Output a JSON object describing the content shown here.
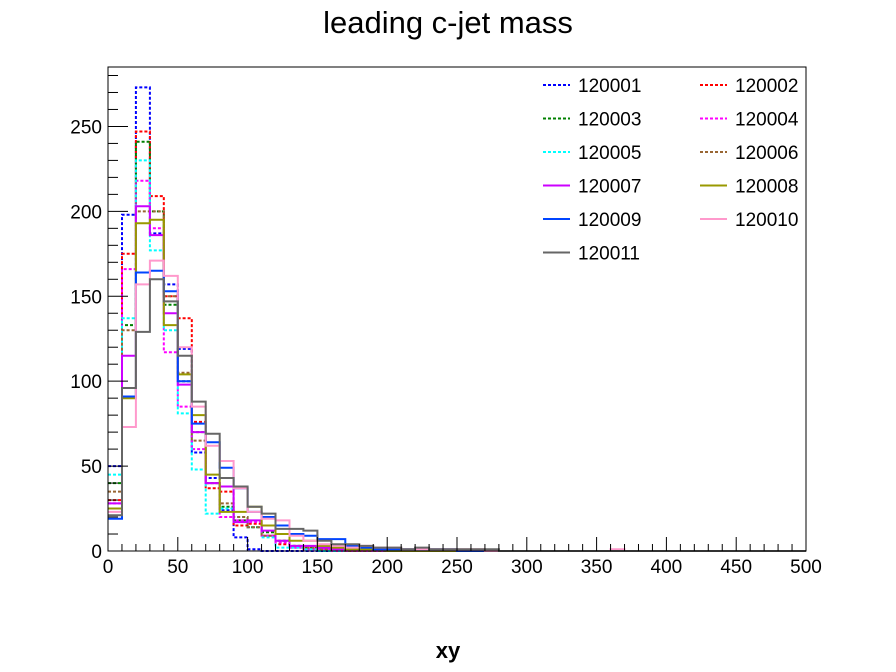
{
  "chart_data": {
    "type": "line",
    "title": "leading c-jet mass",
    "xlabel": "xy",
    "ylabel": "",
    "xlim": [
      0,
      500
    ],
    "ylim": [
      0,
      285
    ],
    "bin_width": 10,
    "x_ticks": [
      0,
      50,
      100,
      150,
      200,
      250,
      300,
      350,
      400,
      450,
      500
    ],
    "y_ticks": [
      0,
      50,
      100,
      150,
      200,
      250
    ],
    "grid": false,
    "legend_placement": "top-right",
    "series": [
      {
        "name": "120001",
        "color": "#0000ff",
        "dash": "dotted",
        "values": [
          50,
          198,
          273,
          187,
          157,
          119,
          58,
          43,
          24,
          8,
          1,
          0,
          0,
          0,
          0,
          0,
          0,
          0,
          0,
          0,
          0,
          0,
          0,
          0,
          0,
          0,
          0,
          0,
          0,
          0,
          0,
          0,
          0,
          0,
          0,
          0,
          0,
          0,
          0,
          0,
          0,
          0,
          0,
          0,
          0,
          0,
          0,
          0,
          0,
          0
        ]
      },
      {
        "name": "120002",
        "color": "#ff0000",
        "dash": "dotted",
        "values": [
          30,
          175,
          247,
          209,
          150,
          137,
          76,
          37,
          35,
          15,
          16,
          9,
          4,
          2,
          2,
          1,
          1,
          0,
          0,
          0,
          0,
          0,
          0,
          0,
          0,
          0,
          0,
          0,
          0,
          0,
          0,
          0,
          0,
          0,
          0,
          0,
          0,
          0,
          0,
          0,
          0,
          0,
          0,
          0,
          0,
          0,
          0,
          0,
          0,
          0
        ]
      },
      {
        "name": "120003",
        "color": "#008000",
        "dash": "dotted",
        "values": [
          40,
          133,
          241,
          200,
          145,
          100,
          70,
          40,
          26,
          18,
          14,
          11,
          6,
          3,
          2,
          1,
          1,
          0,
          0,
          0,
          0,
          0,
          0,
          0,
          0,
          0,
          0,
          0,
          0,
          0,
          0,
          0,
          0,
          0,
          0,
          0,
          0,
          0,
          0,
          0,
          0,
          0,
          0,
          0,
          0,
          0,
          0,
          0,
          0,
          0
        ]
      },
      {
        "name": "120004",
        "color": "#ff00ff",
        "dash": "dotted",
        "values": [
          28,
          166,
          218,
          190,
          117,
          85,
          60,
          40,
          20,
          18,
          17,
          9,
          5,
          2,
          1,
          1,
          0,
          0,
          0,
          0,
          0,
          0,
          0,
          0,
          0,
          0,
          0,
          0,
          0,
          0,
          0,
          0,
          0,
          0,
          0,
          0,
          0,
          0,
          0,
          0,
          0,
          0,
          0,
          0,
          0,
          0,
          0,
          0,
          0,
          0
        ]
      },
      {
        "name": "120005",
        "color": "#00ffff",
        "dash": "dotted",
        "values": [
          45,
          137,
          230,
          177,
          130,
          81,
          48,
          22,
          25,
          20,
          14,
          8,
          2,
          2,
          1,
          0,
          0,
          0,
          0,
          0,
          0,
          0,
          0,
          0,
          0,
          0,
          0,
          0,
          0,
          0,
          0,
          0,
          0,
          0,
          0,
          0,
          0,
          0,
          0,
          0,
          0,
          0,
          0,
          0,
          0,
          0,
          0,
          0,
          0,
          0
        ]
      },
      {
        "name": "120006",
        "color": "#996633",
        "dash": "dotted",
        "values": [
          35,
          130,
          200,
          200,
          150,
          105,
          65,
          40,
          28,
          20,
          14,
          9,
          6,
          3,
          2,
          1,
          1,
          0,
          0,
          0,
          0,
          0,
          0,
          0,
          0,
          0,
          0,
          0,
          0,
          0,
          0,
          0,
          0,
          0,
          0,
          0,
          0,
          0,
          0,
          0,
          0,
          0,
          0,
          0,
          0,
          0,
          0,
          0,
          0,
          0
        ]
      },
      {
        "name": "120007",
        "color": "#cc00ff",
        "dash": "solid",
        "values": [
          28,
          115,
          203,
          186,
          140,
          98,
          70,
          40,
          38,
          17,
          18,
          12,
          6,
          3,
          3,
          2,
          1,
          1,
          1,
          1,
          0,
          0,
          0,
          0,
          0,
          0,
          0,
          0,
          0,
          0,
          0,
          0,
          0,
          0,
          0,
          0,
          0,
          0,
          0,
          0,
          0,
          0,
          0,
          0,
          0,
          0,
          0,
          0,
          0,
          0
        ]
      },
      {
        "name": "120008",
        "color": "#999900",
        "dash": "solid",
        "values": [
          25,
          90,
          193,
          195,
          133,
          104,
          80,
          45,
          23,
          23,
          26,
          15,
          10,
          6,
          6,
          3,
          2,
          1,
          1,
          1,
          0,
          0,
          0,
          0,
          0,
          0,
          0,
          0,
          0,
          0,
          0,
          0,
          0,
          0,
          0,
          0,
          0,
          0,
          0,
          0,
          0,
          0,
          0,
          0,
          0,
          0,
          0,
          0,
          0,
          0
        ]
      },
      {
        "name": "120009",
        "color": "#0044ff",
        "dash": "solid",
        "values": [
          19,
          91,
          164,
          165,
          153,
          100,
          75,
          64,
          49,
          37,
          23,
          20,
          15,
          10,
          9,
          7,
          7,
          3,
          2,
          1,
          1,
          1,
          1,
          1,
          1,
          0,
          0,
          0,
          0,
          0,
          0,
          0,
          0,
          0,
          0,
          0,
          0,
          0,
          0,
          0,
          0,
          0,
          0,
          0,
          0,
          0,
          0,
          0,
          0,
          0
        ]
      },
      {
        "name": "120010",
        "color": "#ff99cc",
        "dash": "solid",
        "values": [
          23,
          73,
          157,
          171,
          162,
          120,
          85,
          62,
          53,
          37,
          23,
          19,
          18,
          9,
          6,
          4,
          3,
          2,
          3,
          2,
          2,
          1,
          1,
          1,
          1,
          1,
          1,
          0,
          0,
          0,
          0,
          0,
          0,
          0,
          0,
          0,
          1,
          0,
          0,
          0,
          0,
          0,
          0,
          0,
          0,
          0,
          0,
          0,
          0,
          0
        ]
      },
      {
        "name": "120011",
        "color": "#666666",
        "dash": "solid",
        "values": [
          21,
          96,
          129,
          160,
          147,
          115,
          88,
          69,
          43,
          38,
          26,
          22,
          13,
          13,
          12,
          6,
          4,
          4,
          3,
          2,
          2,
          1,
          2,
          1,
          1,
          1,
          1,
          1,
          0,
          0,
          0,
          0,
          0,
          0,
          0,
          0,
          0,
          0,
          0,
          0,
          0,
          0,
          0,
          0,
          0,
          0,
          0,
          0,
          0,
          0
        ]
      }
    ]
  }
}
